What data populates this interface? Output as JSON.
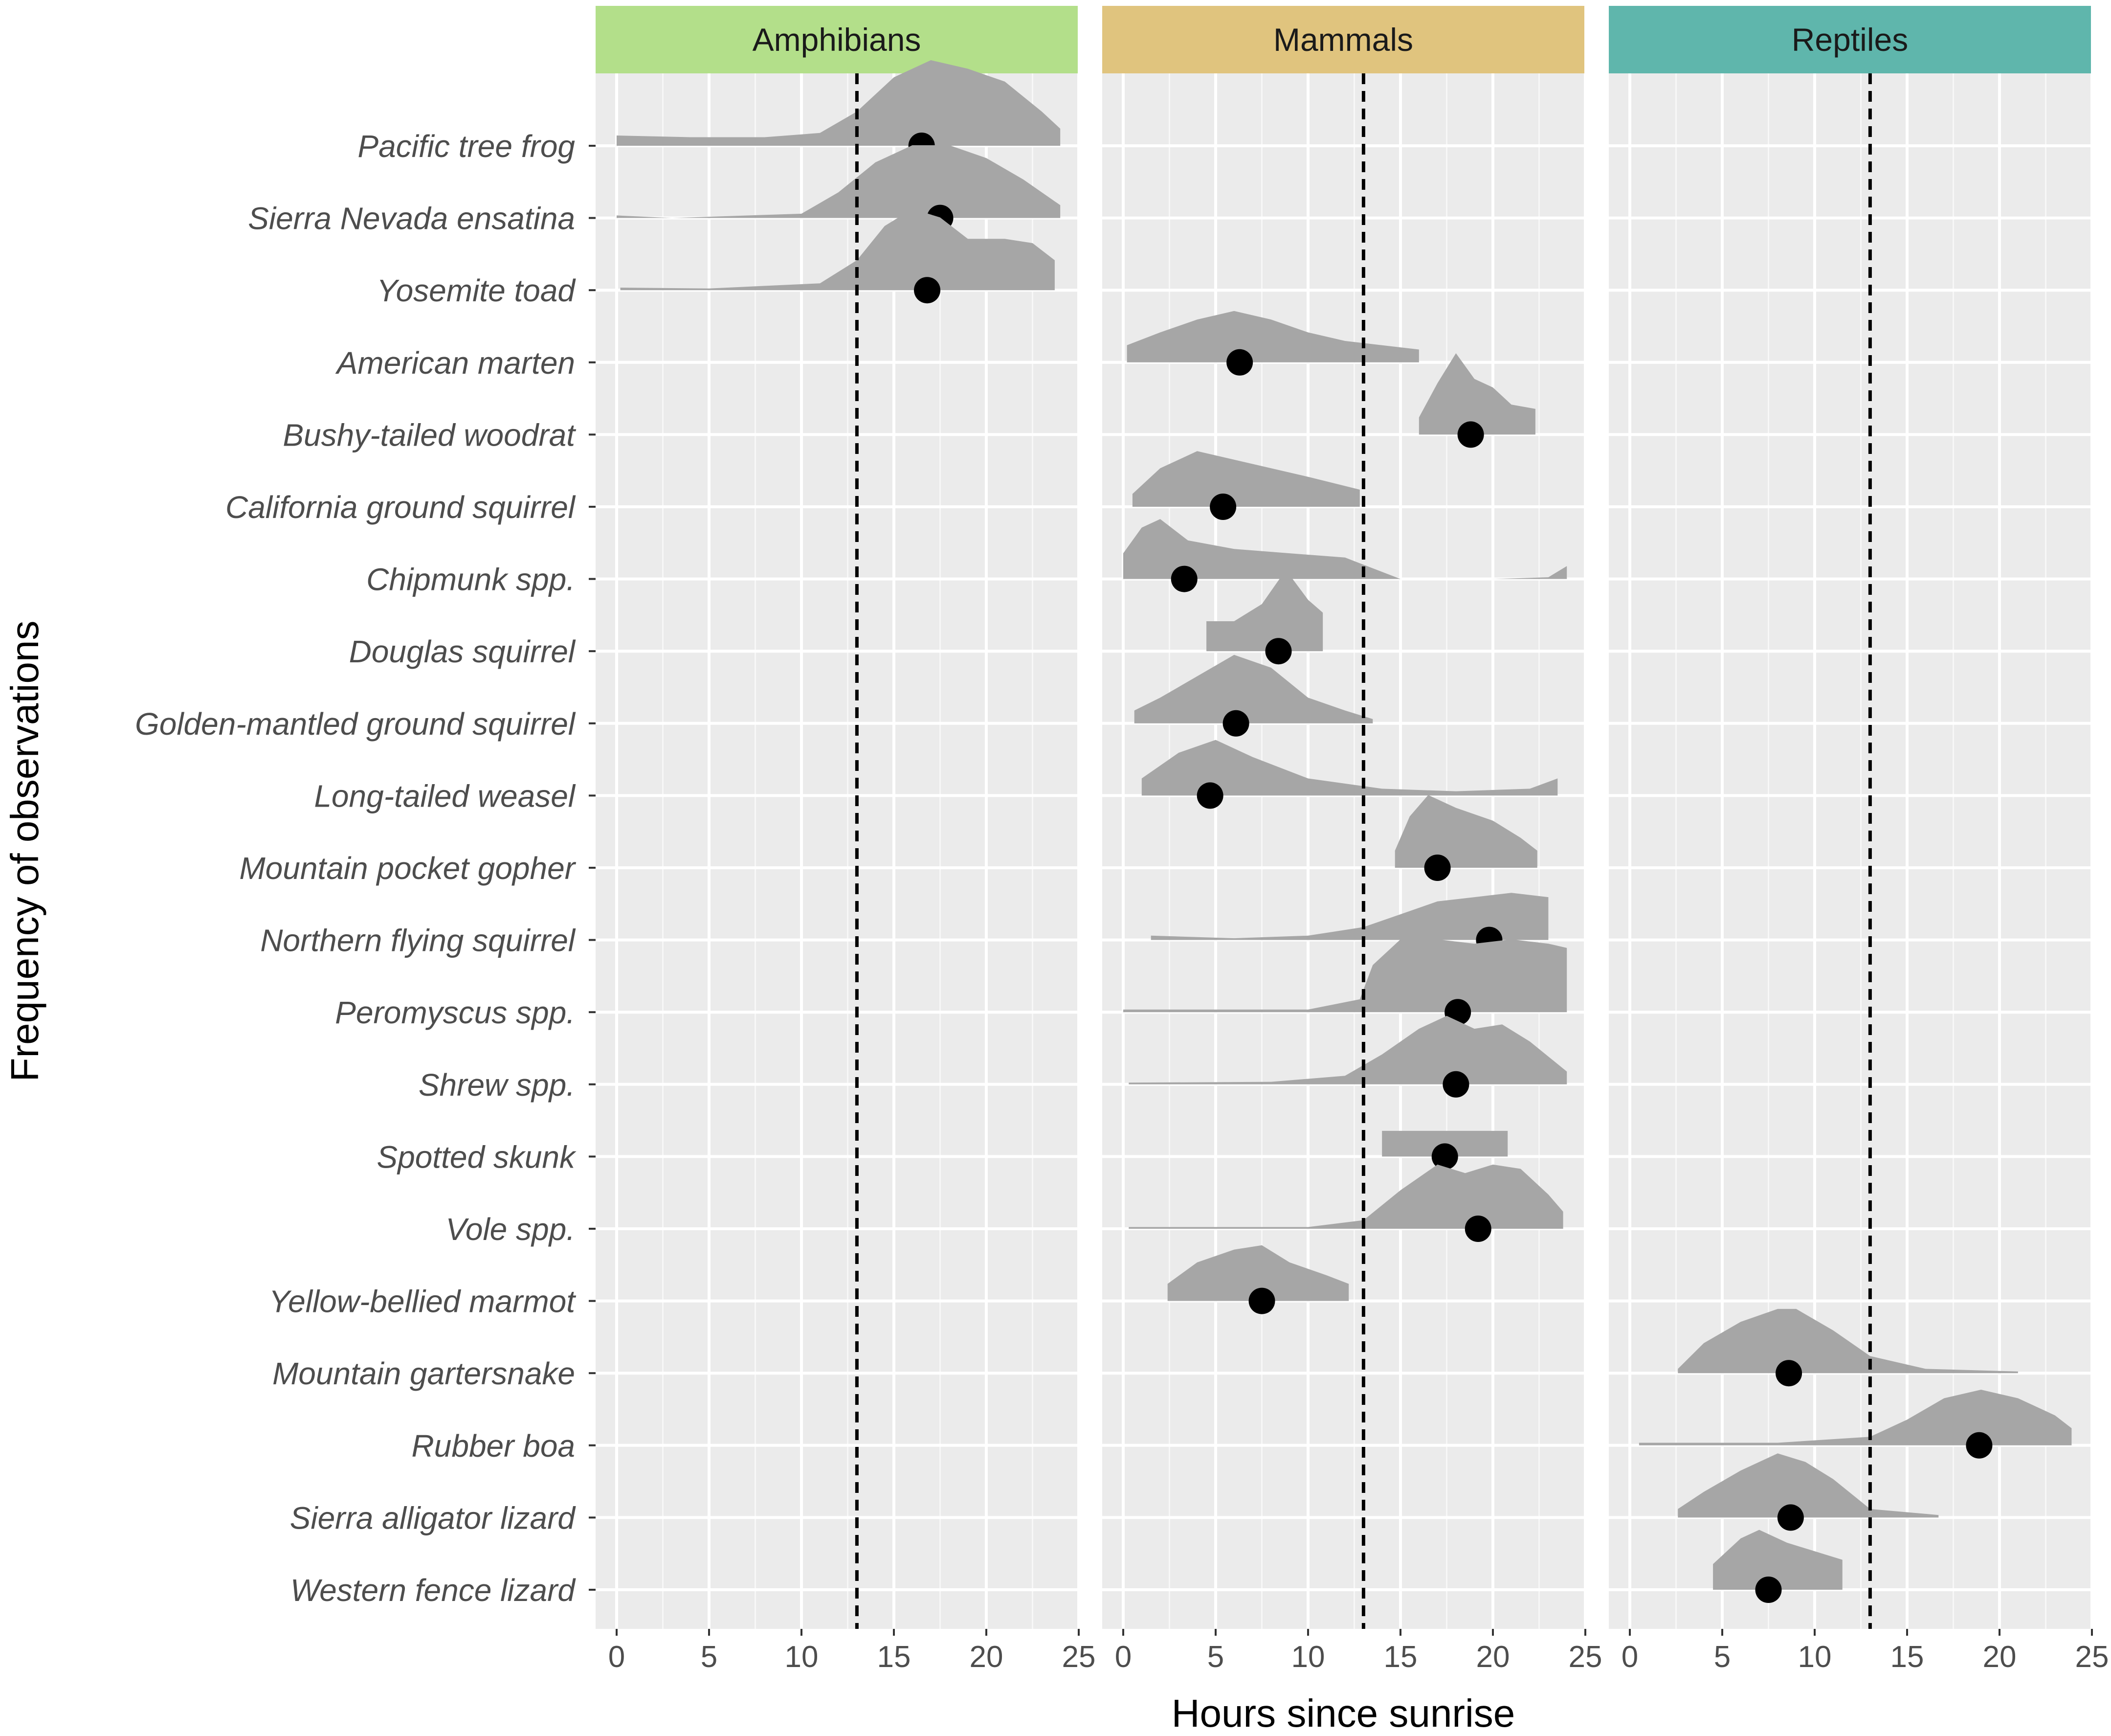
{
  "chart_data": {
    "type": "ridgeline-density",
    "xlabel": "Hours since sunrise",
    "ylabel": "Frequency of observations",
    "xlim": [
      0,
      25
    ],
    "xticks": [
      0,
      5,
      10,
      15,
      20,
      25
    ],
    "reference_line_x": 13,
    "panels": [
      {
        "name": "Amphibians",
        "color": "#B3DF8A"
      },
      {
        "name": "Mammals",
        "color": "#E0C47E"
      },
      {
        "name": "Reptiles",
        "color": "#5FB6AC"
      }
    ],
    "density_color": "#a6a6a6",
    "point_color": "#000000",
    "grid_bg": "#ebebeb",
    "species": [
      {
        "name": "Pacific tree frog",
        "group": "Amphibians",
        "range": [
          0,
          24
        ],
        "median": 16.5,
        "density": [
          [
            0,
            0.12
          ],
          [
            4,
            0.1
          ],
          [
            8,
            0.1
          ],
          [
            11,
            0.15
          ],
          [
            13,
            0.4
          ],
          [
            15,
            0.8
          ],
          [
            17,
            1.0
          ],
          [
            19,
            0.9
          ],
          [
            21,
            0.75
          ],
          [
            23,
            0.4
          ],
          [
            24,
            0.2
          ]
        ]
      },
      {
        "name": "Sierra Nevada ensatina",
        "group": "Amphibians",
        "range": [
          0,
          24
        ],
        "median": 17.5,
        "density": [
          [
            0,
            0.03
          ],
          [
            3,
            0.0
          ],
          [
            10,
            0.05
          ],
          [
            12,
            0.3
          ],
          [
            14,
            0.65
          ],
          [
            16,
            0.85
          ],
          [
            18,
            0.85
          ],
          [
            20,
            0.7
          ],
          [
            22,
            0.45
          ],
          [
            24,
            0.15
          ]
        ]
      },
      {
        "name": "Yosemite toad",
        "group": "Amphibians",
        "range": [
          0.2,
          23.7
        ],
        "median": 16.8,
        "density": [
          [
            0.2,
            0.03
          ],
          [
            5,
            0.02
          ],
          [
            11,
            0.08
          ],
          [
            13,
            0.35
          ],
          [
            14.5,
            0.75
          ],
          [
            16,
            0.95
          ],
          [
            17.5,
            0.85
          ],
          [
            19,
            0.6
          ],
          [
            21,
            0.6
          ],
          [
            22.5,
            0.55
          ],
          [
            23.7,
            0.35
          ]
        ]
      },
      {
        "name": "American marten",
        "group": "Mammals",
        "range": [
          0.2,
          16
        ],
        "median": 6.3,
        "density": [
          [
            0.2,
            0.2
          ],
          [
            2,
            0.35
          ],
          [
            4,
            0.5
          ],
          [
            6,
            0.6
          ],
          [
            8,
            0.5
          ],
          [
            10,
            0.35
          ],
          [
            12,
            0.25
          ],
          [
            14,
            0.2
          ],
          [
            16,
            0.15
          ]
        ]
      },
      {
        "name": "Bushy-tailed woodrat",
        "group": "Mammals",
        "range": [
          16,
          22.3
        ],
        "median": 18.8,
        "density": [
          [
            16,
            0.2
          ],
          [
            17,
            0.6
          ],
          [
            18,
            0.95
          ],
          [
            19,
            0.65
          ],
          [
            20,
            0.55
          ],
          [
            21,
            0.35
          ],
          [
            22.3,
            0.3
          ]
        ]
      },
      {
        "name": "California ground squirrel",
        "group": "Mammals",
        "range": [
          0.5,
          12.8
        ],
        "median": 5.4,
        "density": [
          [
            0.5,
            0.15
          ],
          [
            2,
            0.45
          ],
          [
            4,
            0.65
          ],
          [
            6,
            0.55
          ],
          [
            8,
            0.45
          ],
          [
            10,
            0.35
          ],
          [
            12.8,
            0.2
          ]
        ]
      },
      {
        "name": "Chipmunk spp.",
        "group": "Mammals",
        "range": [
          0,
          24
        ],
        "median": 3.3,
        "density": [
          [
            0,
            0.3
          ],
          [
            1,
            0.6
          ],
          [
            2,
            0.7
          ],
          [
            3.5,
            0.45
          ],
          [
            6,
            0.35
          ],
          [
            9,
            0.3
          ],
          [
            12,
            0.25
          ],
          [
            15,
            0.0
          ],
          [
            20,
            0.0
          ],
          [
            23,
            0.02
          ],
          [
            24,
            0.15
          ]
        ]
      },
      {
        "name": "Douglas squirrel",
        "group": "Mammals",
        "range": [
          4.5,
          10.8
        ],
        "median": 8.4,
        "density": [
          [
            4.5,
            0.35
          ],
          [
            6,
            0.35
          ],
          [
            7.5,
            0.55
          ],
          [
            8.8,
            0.95
          ],
          [
            10,
            0.6
          ],
          [
            10.8,
            0.45
          ]
        ]
      },
      {
        "name": "Golden-mantled ground squirrel",
        "group": "Mammals",
        "range": [
          0.6,
          13.5
        ],
        "median": 6.1,
        "density": [
          [
            0.6,
            0.15
          ],
          [
            2,
            0.3
          ],
          [
            4,
            0.55
          ],
          [
            6,
            0.8
          ],
          [
            8,
            0.65
          ],
          [
            10,
            0.3
          ],
          [
            12,
            0.15
          ],
          [
            13.5,
            0.05
          ]
        ]
      },
      {
        "name": "Long-tailed weasel",
        "group": "Mammals",
        "range": [
          1,
          23.5
        ],
        "median": 4.7,
        "density": [
          [
            1,
            0.2
          ],
          [
            3,
            0.5
          ],
          [
            5,
            0.65
          ],
          [
            7,
            0.45
          ],
          [
            10,
            0.2
          ],
          [
            14,
            0.08
          ],
          [
            18,
            0.05
          ],
          [
            22,
            0.08
          ],
          [
            23.5,
            0.2
          ]
        ]
      },
      {
        "name": "Mountain pocket gopher",
        "group": "Mammals",
        "range": [
          14.7,
          22.4
        ],
        "median": 17,
        "density": [
          [
            14.7,
            0.2
          ],
          [
            15.5,
            0.6
          ],
          [
            16.5,
            0.85
          ],
          [
            18,
            0.7
          ],
          [
            20,
            0.55
          ],
          [
            21.5,
            0.35
          ],
          [
            22.4,
            0.2
          ]
        ]
      },
      {
        "name": "Northern flying squirrel",
        "group": "Mammals",
        "range": [
          1.5,
          23
        ],
        "median": 19.8,
        "density": [
          [
            1.5,
            0.05
          ],
          [
            6,
            0.02
          ],
          [
            10,
            0.05
          ],
          [
            13,
            0.15
          ],
          [
            15,
            0.3
          ],
          [
            17,
            0.45
          ],
          [
            19,
            0.5
          ],
          [
            21,
            0.55
          ],
          [
            23,
            0.5
          ]
        ]
      },
      {
        "name": "Peromyscus spp.",
        "group": "Mammals",
        "range": [
          0,
          24
        ],
        "median": 18.1,
        "density": [
          [
            0,
            0.03
          ],
          [
            5,
            0.03
          ],
          [
            10,
            0.03
          ],
          [
            12.8,
            0.15
          ],
          [
            13.5,
            0.55
          ],
          [
            15,
            0.85
          ],
          [
            17,
            0.85
          ],
          [
            19,
            0.8
          ],
          [
            21,
            0.85
          ],
          [
            23,
            0.8
          ],
          [
            24,
            0.75
          ]
        ]
      },
      {
        "name": "Shrew spp.",
        "group": "Mammals",
        "range": [
          0.3,
          24
        ],
        "median": 18,
        "density": [
          [
            0.3,
            0.02
          ],
          [
            8,
            0.03
          ],
          [
            12,
            0.1
          ],
          [
            14,
            0.35
          ],
          [
            16,
            0.65
          ],
          [
            17.5,
            0.8
          ],
          [
            19,
            0.65
          ],
          [
            20.5,
            0.7
          ],
          [
            22,
            0.5
          ],
          [
            24,
            0.15
          ]
        ]
      },
      {
        "name": "Spotted skunk",
        "group": "Mammals",
        "range": [
          14,
          20.8
        ],
        "median": 17.4,
        "density": [
          [
            14,
            0.3
          ],
          [
            16,
            0.3
          ],
          [
            18,
            0.3
          ],
          [
            20.8,
            0.3
          ]
        ]
      },
      {
        "name": "Vole spp.",
        "group": "Mammals",
        "range": [
          0.3,
          23.8
        ],
        "median": 19.2,
        "density": [
          [
            0.3,
            0.02
          ],
          [
            10,
            0.02
          ],
          [
            13,
            0.1
          ],
          [
            15,
            0.45
          ],
          [
            17,
            0.75
          ],
          [
            18.5,
            0.65
          ],
          [
            20,
            0.75
          ],
          [
            21.5,
            0.7
          ],
          [
            23,
            0.4
          ],
          [
            23.8,
            0.2
          ]
        ]
      },
      {
        "name": "Yellow-bellied marmot",
        "group": "Mammals",
        "range": [
          2.4,
          12.2
        ],
        "median": 7.5,
        "density": [
          [
            2.4,
            0.2
          ],
          [
            4,
            0.45
          ],
          [
            6,
            0.6
          ],
          [
            7.5,
            0.65
          ],
          [
            9,
            0.45
          ],
          [
            11,
            0.3
          ],
          [
            12.2,
            0.2
          ]
        ]
      },
      {
        "name": "Mountain gartersnake",
        "group": "Reptiles",
        "range": [
          2.6,
          21
        ],
        "median": 8.6,
        "density": [
          [
            2.6,
            0.05
          ],
          [
            4,
            0.35
          ],
          [
            6,
            0.6
          ],
          [
            8,
            0.75
          ],
          [
            9,
            0.75
          ],
          [
            11,
            0.5
          ],
          [
            13,
            0.2
          ],
          [
            16,
            0.05
          ],
          [
            21,
            0.02
          ]
        ]
      },
      {
        "name": "Rubber boa",
        "group": "Reptiles",
        "range": [
          0.5,
          23.9
        ],
        "median": 18.9,
        "density": [
          [
            0.5,
            0.03
          ],
          [
            8,
            0.03
          ],
          [
            13,
            0.1
          ],
          [
            15,
            0.3
          ],
          [
            17,
            0.55
          ],
          [
            19,
            0.65
          ],
          [
            21,
            0.55
          ],
          [
            23,
            0.35
          ],
          [
            23.9,
            0.2
          ]
        ]
      },
      {
        "name": "Sierra alligator lizard",
        "group": "Reptiles",
        "range": [
          2.6,
          16.7
        ],
        "median": 8.7,
        "density": [
          [
            2.6,
            0.1
          ],
          [
            4,
            0.3
          ],
          [
            6,
            0.55
          ],
          [
            8,
            0.75
          ],
          [
            9.5,
            0.65
          ],
          [
            11,
            0.45
          ],
          [
            13,
            0.1
          ],
          [
            16.7,
            0.03
          ]
        ]
      },
      {
        "name": "Western fence lizard",
        "group": "Reptiles",
        "range": [
          4.5,
          11.5
        ],
        "median": 7.5,
        "density": [
          [
            4.5,
            0.3
          ],
          [
            6,
            0.6
          ],
          [
            7,
            0.7
          ],
          [
            8.5,
            0.55
          ],
          [
            10,
            0.45
          ],
          [
            11.5,
            0.35
          ]
        ]
      }
    ]
  }
}
